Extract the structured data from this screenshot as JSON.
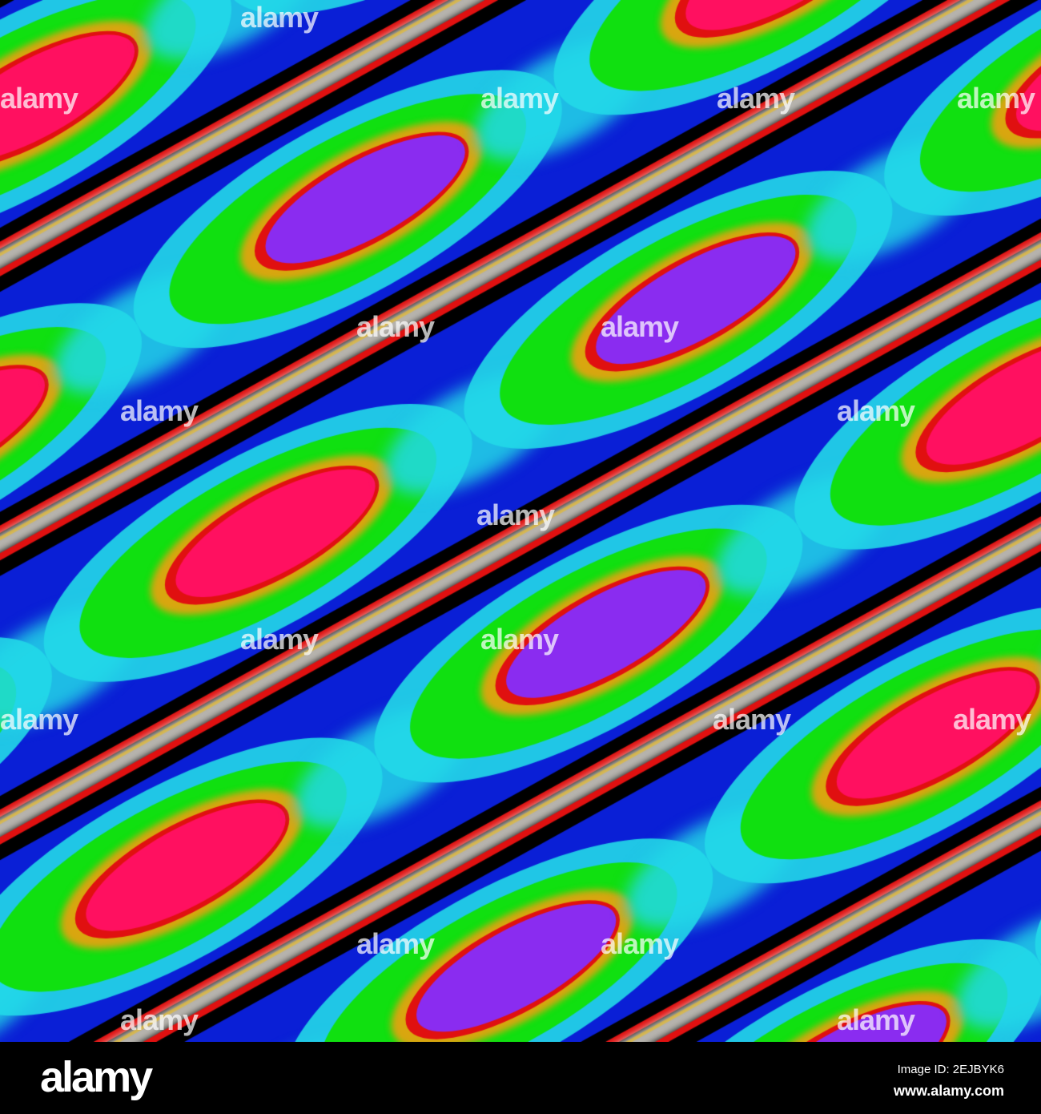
{
  "artwork": {
    "palette": [
      "#000000",
      "#0a1fd6",
      "#22d8e8",
      "#10e010",
      "#f0a010",
      "#ff1060",
      "#8a2cf0",
      "#e01010",
      "#f4f0e8"
    ]
  },
  "watermark": {
    "text": "alamy"
  },
  "footer": {
    "logo": "alamy",
    "image_id": "Image ID: 2EJBYK6",
    "website": "www.alamy.com"
  }
}
